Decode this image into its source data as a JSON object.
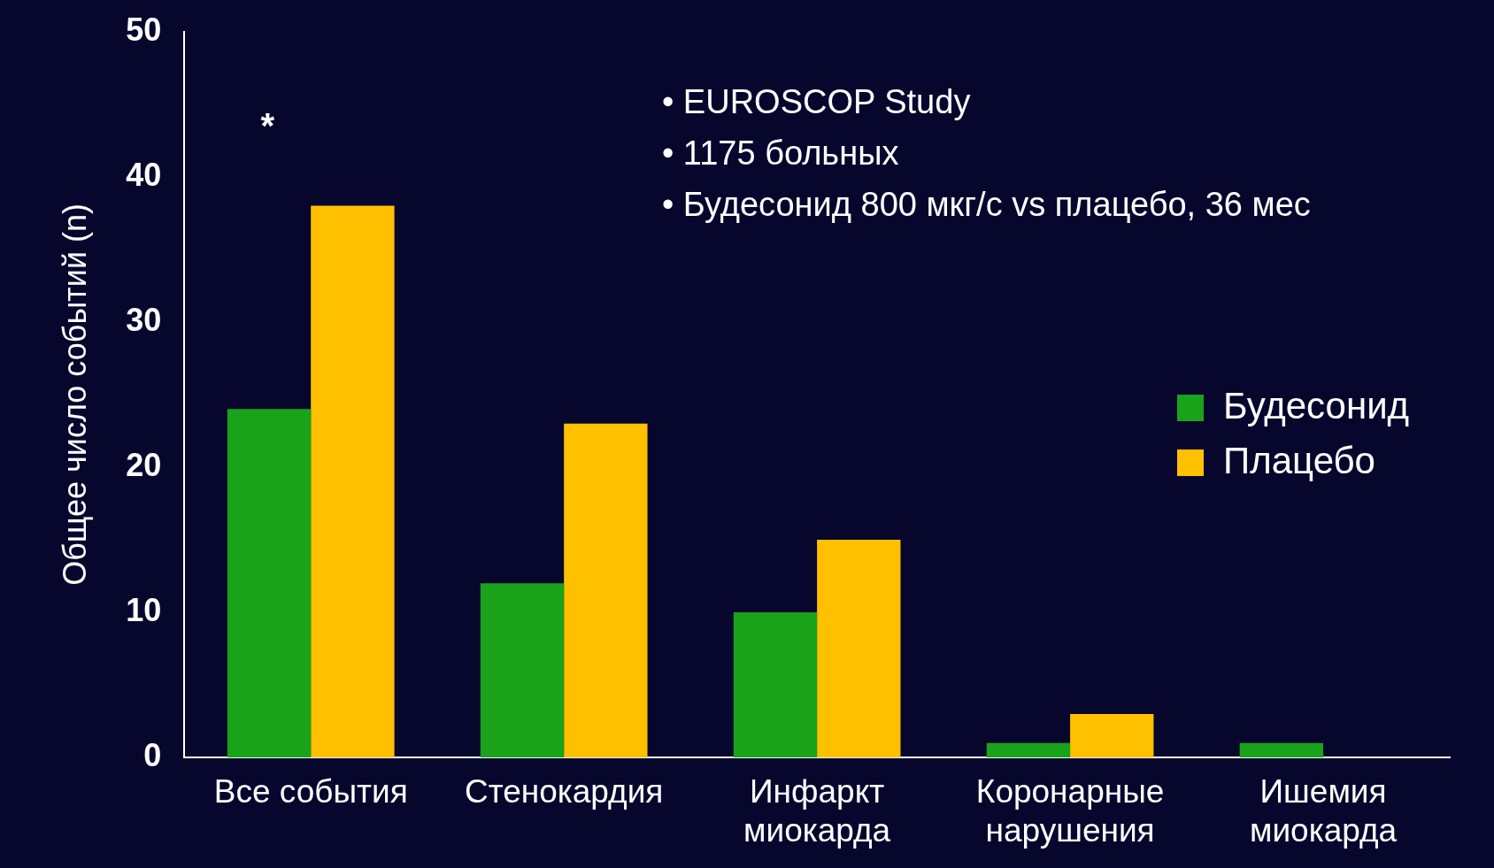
{
  "chart_data": {
    "type": "bar",
    "ylabel": "Общее число событий (n)",
    "categories": [
      "Все события",
      "Стенокардия",
      "Инфаркт\nмиокарда",
      "Коронарные\nнарушения",
      "Ишемия\nмиокарда"
    ],
    "series": [
      {
        "name": "Будесонид",
        "color": "#1aa31a",
        "values": [
          24,
          12,
          10,
          1,
          1
        ]
      },
      {
        "name": "Плацебо",
        "color": "#ffc000",
        "values": [
          38,
          23,
          15,
          3,
          0
        ]
      }
    ],
    "ylim": [
      0,
      50
    ],
    "yticks": [
      0,
      10,
      20,
      30,
      40,
      50
    ],
    "grid": false,
    "legend": "right",
    "annotations": [
      "*",
      "• EUROSCOP Study",
      "• 1175 больных",
      "• Будесонид 800 мкг/с vs плацебо, 36 мес"
    ]
  }
}
